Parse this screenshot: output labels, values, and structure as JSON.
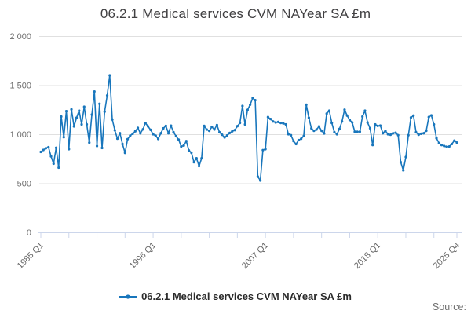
{
  "header": {
    "title": "06.2.1 Medical services CVM NAYear SA £m"
  },
  "legend": {
    "label": "06.2.1 Medical services CVM NAYear SA £m"
  },
  "footer": {
    "source_label": "Source:"
  },
  "colors": {
    "line": "#1876bc",
    "grid": "#e0e0e0",
    "axis": "#ccd6eb",
    "tick_text": "#666666",
    "y_label_text": "#6e6e6e",
    "title_text": "#414042"
  },
  "chart_data": {
    "type": "line",
    "title": "06.2.1 Medical services CVM NAYear SA £m",
    "series_name": "06.2.1 Medical services CVM NAYear SA £m",
    "x_start": "1985 Q1",
    "x_end": "2025 Q4",
    "frequency": "quarterly",
    "n_points": 164,
    "ylim": [
      0,
      2000
    ],
    "grid": "horizontal",
    "legend_position": "bottom",
    "y_ticks": [
      {
        "value": 2000,
        "label": "2 000"
      },
      {
        "value": 1500,
        "label": "1 500"
      },
      {
        "value": 1000,
        "label": "1 000"
      },
      {
        "value": 500,
        "label": "500"
      },
      {
        "value": 0,
        "label": "0"
      }
    ],
    "x_tick_every": 11,
    "x_labeled_ticks": [
      {
        "index": 0,
        "label": "1985 Q1"
      },
      {
        "index": 44,
        "label": "1996 Q1"
      },
      {
        "index": 88,
        "label": "2007 Q1"
      },
      {
        "index": 132,
        "label": "2018 Q1"
      },
      {
        "index": 163,
        "label": "2025 Q4"
      }
    ],
    "values": [
      820,
      840,
      858,
      868,
      775,
      700,
      862,
      660,
      1180,
      970,
      1235,
      848,
      1253,
      1080,
      1168,
      1240,
      1100,
      1280,
      1100,
      915,
      1200,
      1435,
      880,
      1310,
      860,
      1230,
      1395,
      1600,
      1150,
      1040,
      955,
      1010,
      900,
      810,
      950,
      985,
      1005,
      1030,
      1065,
      1010,
      1050,
      1115,
      1080,
      1045,
      1000,
      985,
      952,
      1010,
      1060,
      1085,
      1010,
      1087,
      1020,
      980,
      945,
      875,
      885,
      930,
      835,
      812,
      715,
      755,
      675,
      755,
      1085,
      1048,
      1035,
      1075,
      1048,
      1093,
      1020,
      995,
      968,
      988,
      1013,
      1030,
      1042,
      1082,
      1115,
      1288,
      1100,
      1248,
      1301,
      1368,
      1347,
      568,
      528,
      838,
      848,
      1175,
      1155,
      1130,
      1120,
      1125,
      1115,
      1110,
      1100,
      1000,
      990,
      930,
      900,
      940,
      954,
      981,
      1301,
      1168,
      1060,
      1035,
      1048,
      1080,
      1035,
      1008,
      1210,
      1240,
      1115,
      1021,
      1000,
      1054,
      1130,
      1250,
      1190,
      1145,
      1120,
      1025,
      1025,
      1026,
      1180,
      1240,
      1120,
      1060,
      890,
      1100,
      1085,
      1088,
      1010,
      1035,
      1000,
      995,
      1010,
      1015,
      990,
      715,
      632,
      768,
      990,
      1170,
      1190,
      1020,
      995,
      1005,
      1010,
      1035,
      1175,
      1192,
      1100,
      960,
      910,
      890,
      880,
      873,
      875,
      900,
      935,
      915
    ]
  }
}
